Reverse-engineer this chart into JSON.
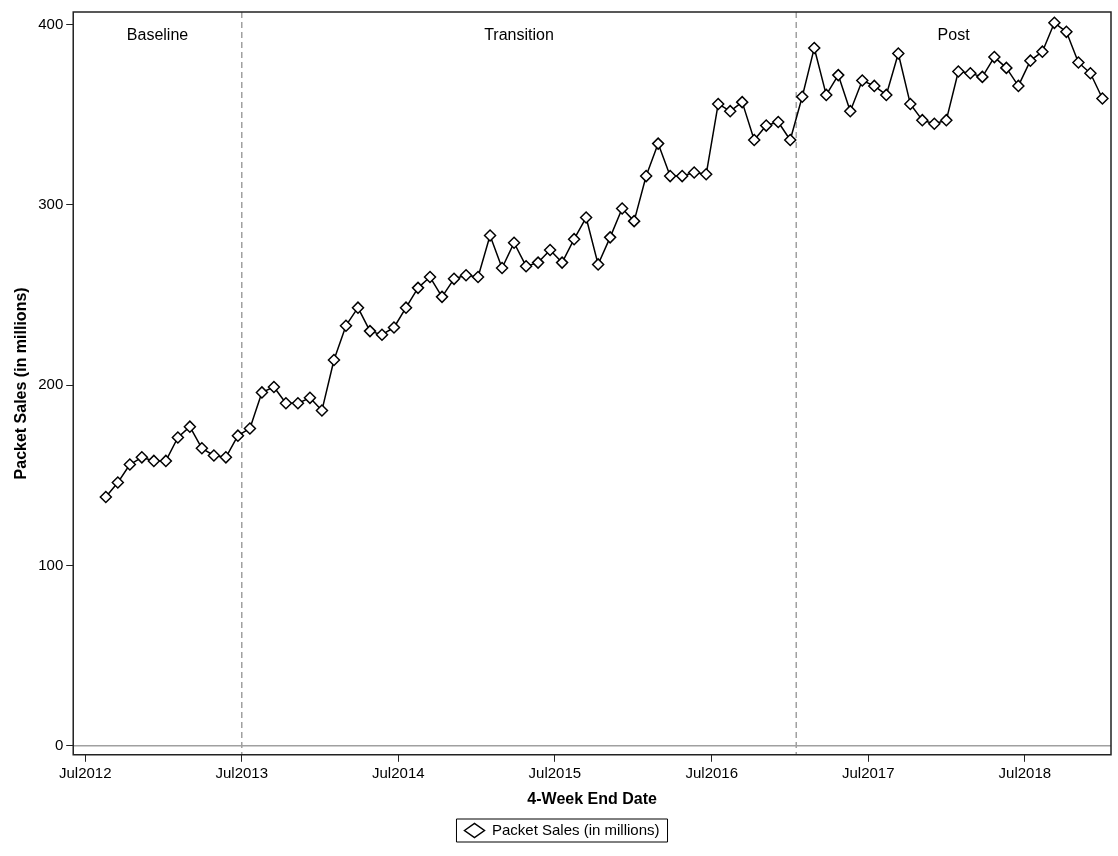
{
  "chart_data": {
    "type": "line",
    "xlabel": "4-Week End Date",
    "ylabel": "Packet Sales (in millions)",
    "x": [
      "2012-08-18",
      "2012-09-15",
      "2012-10-13",
      "2012-11-10",
      "2012-12-08",
      "2013-01-05",
      "2013-02-02",
      "2013-03-02",
      "2013-03-30",
      "2013-04-27",
      "2013-05-25",
      "2013-06-22",
      "2013-07-20",
      "2013-08-17",
      "2013-09-14",
      "2013-10-12",
      "2013-11-09",
      "2013-12-07",
      "2014-01-04",
      "2014-02-01",
      "2014-03-01",
      "2014-03-29",
      "2014-04-26",
      "2014-05-24",
      "2014-06-21",
      "2014-07-19",
      "2014-08-16",
      "2014-09-13",
      "2014-10-11",
      "2014-11-08",
      "2014-12-06",
      "2015-01-03",
      "2015-01-31",
      "2015-02-28",
      "2015-03-28",
      "2015-04-25",
      "2015-05-23",
      "2015-06-20",
      "2015-07-18",
      "2015-08-15",
      "2015-09-12",
      "2015-10-10",
      "2015-11-07",
      "2015-12-05",
      "2016-01-02",
      "2016-01-30",
      "2016-02-27",
      "2016-03-26",
      "2016-04-23",
      "2016-05-21",
      "2016-06-18",
      "2016-07-16",
      "2016-08-13",
      "2016-09-10",
      "2016-10-08",
      "2016-11-05",
      "2016-12-03",
      "2016-12-31",
      "2017-01-28",
      "2017-02-25",
      "2017-03-25",
      "2017-04-22",
      "2017-05-20",
      "2017-06-17",
      "2017-07-15",
      "2017-08-12",
      "2017-09-09",
      "2017-10-07",
      "2017-11-04",
      "2017-12-02",
      "2017-12-30",
      "2018-01-27",
      "2018-02-24",
      "2018-03-24",
      "2018-04-21",
      "2018-05-19",
      "2018-06-16",
      "2018-07-14",
      "2018-08-11",
      "2018-09-08",
      "2018-10-06",
      "2018-11-03",
      "2018-12-01",
      "2018-12-29"
    ],
    "series": [
      {
        "name": "Packet Sales (in millions)",
        "color": "#000000",
        "values": [
          138,
          146,
          156,
          160,
          158,
          158,
          171,
          177,
          165,
          161,
          160,
          172,
          176,
          196,
          199,
          190,
          190,
          193,
          186,
          214,
          233,
          243,
          230,
          228,
          232,
          243,
          254,
          260,
          249,
          259,
          261,
          260,
          283,
          265,
          279,
          266,
          268,
          275,
          268,
          281,
          293,
          267,
          282,
          298,
          291,
          316,
          334,
          316,
          316,
          318,
          317,
          356,
          352,
          357,
          336,
          344,
          346,
          336,
          360,
          387,
          361,
          372,
          352,
          369,
          366,
          361,
          384,
          356,
          347,
          345,
          347,
          374,
          373,
          371,
          382,
          376,
          366,
          380,
          385,
          401,
          396,
          379,
          373,
          359
        ]
      }
    ],
    "xlim": [
      "2012-06-03",
      "2019-01-18"
    ],
    "xticks": [
      {
        "value": "2012-07-01",
        "label": "Jul2012"
      },
      {
        "value": "2013-07-01",
        "label": "Jul2013"
      },
      {
        "value": "2014-07-01",
        "label": "Jul2014"
      },
      {
        "value": "2015-07-01",
        "label": "Jul2015"
      },
      {
        "value": "2016-07-01",
        "label": "Jul2016"
      },
      {
        "value": "2017-07-01",
        "label": "Jul2017"
      },
      {
        "value": "2018-07-01",
        "label": "Jul2018"
      }
    ],
    "ylim": [
      -5,
      407
    ],
    "yticks": [
      0,
      100,
      200,
      300,
      400
    ],
    "ref_lines": [
      {
        "axis": "y",
        "value": 0,
        "color": "#a0a0a0",
        "line_style": "solid"
      },
      {
        "axis": "x",
        "value": "2013-07-01",
        "color": "#a0a0a0",
        "line_style": "dashed"
      },
      {
        "axis": "x",
        "value": "2017-01-14",
        "color": "#a0a0a0",
        "line_style": "dashed"
      }
    ],
    "annotations": [
      "Baseline",
      "Transition",
      "Post"
    ],
    "grid": false,
    "legend": "bottom",
    "marker": "diamond",
    "line_style": "solid"
  }
}
